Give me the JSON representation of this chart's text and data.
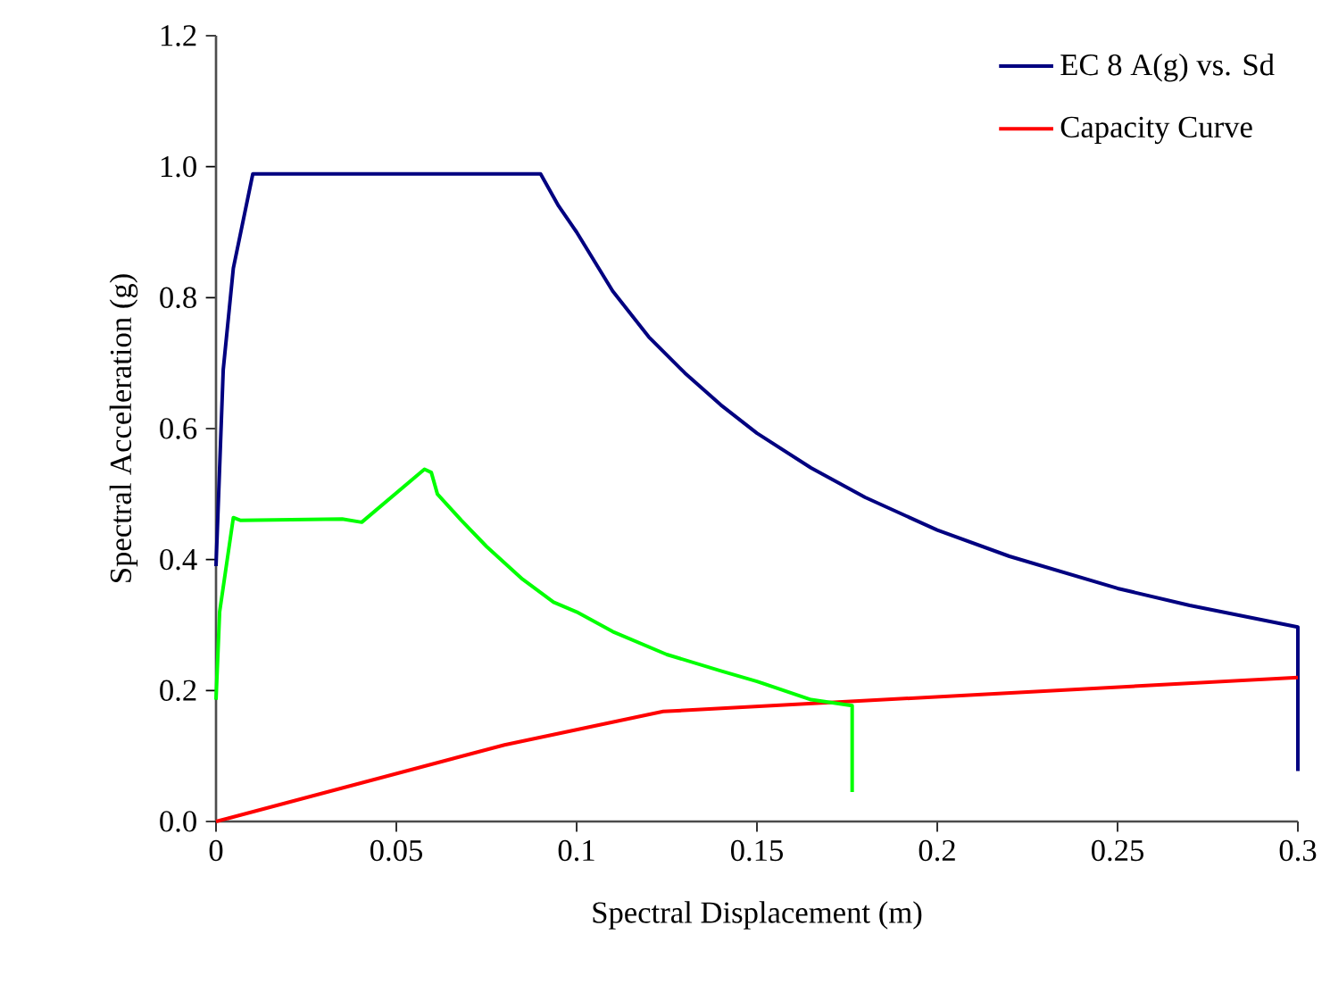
{
  "chart_data": {
    "type": "line",
    "xlabel": "Spectral Displacement (m)",
    "ylabel": "Spectral Acceleration (g)",
    "xlim": [
      0,
      0.3
    ],
    "ylim": [
      0,
      1.2
    ],
    "xticks": [
      0,
      0.05,
      0.1,
      0.15,
      0.2,
      0.25,
      0.3
    ],
    "yticks": [
      {
        "value": 0,
        "label": "0.0"
      },
      {
        "value": 0.2,
        "label": "0.2"
      },
      {
        "value": 0.4,
        "label": "0.4"
      },
      {
        "value": 0.6,
        "label": "0.6"
      },
      {
        "value": 0.8,
        "label": "0.8"
      },
      {
        "value": 1.0,
        "label": "1.0"
      },
      {
        "value": 1.2,
        "label": "1.2"
      }
    ],
    "grid": false,
    "legend": "top right",
    "marker": "none",
    "line_style": "solid",
    "series": [
      {
        "name": "EC 8 A(g) vs. Sd",
        "color": "#000080",
        "x": [
          0,
          0.002,
          0.0048,
          0.0102,
          0.09,
          0.095,
          0.1,
          0.11,
          0.12,
          0.13,
          0.14,
          0.15,
          0.165,
          0.18,
          0.2,
          0.22,
          0.25,
          0.27,
          0.3,
          0.3
        ],
        "values": [
          0.39,
          0.69,
          0.845,
          0.989,
          0.989,
          0.94,
          0.9,
          0.81,
          0.74,
          0.685,
          0.636,
          0.593,
          0.54,
          0.495,
          0.445,
          0.405,
          0.356,
          0.33,
          0.297,
          0.077
        ]
      },
      {
        "name": "Capacity Curve",
        "color": "#ff0000",
        "x": [
          0,
          0.08,
          0.124,
          0.3
        ],
        "values": [
          0,
          0.117,
          0.168,
          0.22
        ]
      },
      {
        "color": "#00ff00",
        "x": [
          0,
          0.001,
          0.0048,
          0.0067,
          0.035,
          0.0404,
          0.0578,
          0.0597,
          0.0614,
          0.068,
          0.075,
          0.085,
          0.0936,
          0.1,
          0.11,
          0.125,
          0.14,
          0.15,
          0.165,
          0.1764,
          0.1764
        ],
        "values": [
          0.186,
          0.32,
          0.464,
          0.46,
          0.462,
          0.457,
          0.538,
          0.533,
          0.5,
          0.46,
          0.42,
          0.37,
          0.335,
          0.32,
          0.29,
          0.255,
          0.23,
          0.214,
          0.186,
          0.177,
          0.045
        ]
      }
    ]
  }
}
